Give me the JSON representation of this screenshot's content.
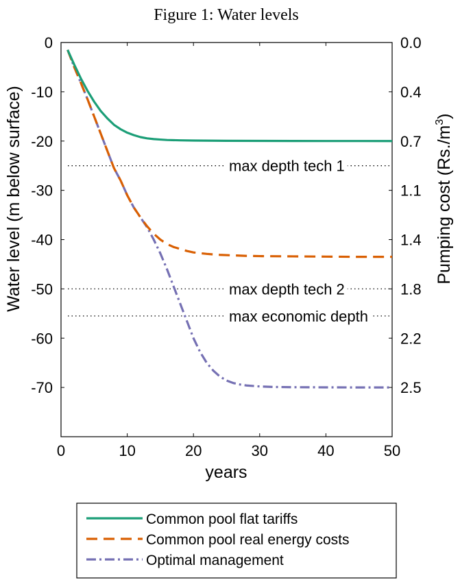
{
  "chart_data": {
    "type": "line",
    "title": "Figure 1: Water levels",
    "xlabel": "years",
    "ylabel": "Water level (m below surface)",
    "y2label_main": "Pumping cost (Rs./m",
    "y2label_sup": "3",
    "y2label_close": ")",
    "xlim": [
      0,
      50
    ],
    "ylim": [
      -80,
      0
    ],
    "xticks": [
      0,
      10,
      20,
      30,
      40,
      50
    ],
    "yticks": [
      0,
      -10,
      -20,
      -30,
      -40,
      -50,
      -60,
      -70
    ],
    "xtick_labels": [
      "0",
      "10",
      "20",
      "30",
      "40",
      "50"
    ],
    "ytick_labels": [
      "0",
      "-10",
      "-20",
      "-30",
      "-40",
      "-50",
      "-60",
      "-70"
    ],
    "y2ticks": [
      {
        "at": 0,
        "label": "0.0"
      },
      {
        "at": -10,
        "label": "0.4"
      },
      {
        "at": -20,
        "label": "0.7"
      },
      {
        "at": -30,
        "label": "1.1"
      },
      {
        "at": -40,
        "label": "1.4"
      },
      {
        "at": -50,
        "label": "1.8"
      },
      {
        "at": -60,
        "label": "2.2"
      },
      {
        "at": -70,
        "label": "2.5"
      }
    ],
    "grid": false,
    "legend_position": "bottom",
    "reference_lines": [
      {
        "y": -25,
        "label": "max depth tech 1"
      },
      {
        "y": -50,
        "label": "max depth tech 2"
      },
      {
        "y": -55.5,
        "label": "max economic depth"
      }
    ],
    "series": [
      {
        "name": "Common pool flat tariffs",
        "color": "#1b9e77",
        "style": "solid",
        "x": [
          1,
          2,
          3,
          4,
          5,
          6,
          7,
          8,
          9,
          10,
          11,
          12,
          13,
          14,
          15,
          16,
          18,
          20,
          25,
          30,
          35,
          40,
          45,
          50
        ],
        "y": [
          -1.5,
          -4.5,
          -7.3,
          -9.8,
          -12.0,
          -13.9,
          -15.4,
          -16.7,
          -17.6,
          -18.3,
          -18.8,
          -19.2,
          -19.45,
          -19.6,
          -19.7,
          -19.78,
          -19.85,
          -19.9,
          -19.95,
          -19.97,
          -19.98,
          -19.99,
          -19.99,
          -20.0
        ]
      },
      {
        "name": "Common pool real energy costs",
        "color": "#d95f02",
        "style": "dashed",
        "x": [
          1,
          2,
          3,
          4,
          5,
          6,
          7,
          8,
          9,
          10,
          11,
          12,
          13,
          14,
          15,
          16,
          17,
          18,
          19,
          20,
          22,
          24,
          26,
          28,
          30,
          35,
          40,
          45,
          50
        ],
        "y": [
          -1.5,
          -5.0,
          -8.2,
          -11.5,
          -15.0,
          -18.5,
          -22.0,
          -25.5,
          -28.0,
          -31.0,
          -33.5,
          -35.5,
          -37.3,
          -38.8,
          -40.0,
          -40.9,
          -41.5,
          -41.9,
          -42.3,
          -42.6,
          -42.9,
          -43.1,
          -43.2,
          -43.3,
          -43.35,
          -43.4,
          -43.45,
          -43.5,
          -43.5
        ]
      },
      {
        "name": "Optimal management",
        "color": "#7570b3",
        "style": "dashdot",
        "x": [
          1,
          2,
          3,
          4,
          5,
          6,
          7,
          8,
          9,
          10,
          11,
          12,
          13,
          14,
          15,
          16,
          17,
          18,
          19,
          20,
          21,
          22,
          23,
          24,
          25,
          26,
          27,
          28,
          30,
          32,
          35,
          40,
          45,
          50
        ],
        "y": [
          -1.5,
          -5.0,
          -8.2,
          -11.5,
          -15.0,
          -18.5,
          -22.0,
          -25.5,
          -28.0,
          -31.0,
          -33.5,
          -35.5,
          -37.5,
          -40.0,
          -42.8,
          -46.0,
          -49.5,
          -53.0,
          -56.5,
          -60.0,
          -62.8,
          -65.0,
          -66.6,
          -67.8,
          -68.6,
          -69.1,
          -69.4,
          -69.6,
          -69.8,
          -69.9,
          -69.95,
          -69.98,
          -70.0,
          -70.0
        ]
      }
    ]
  }
}
